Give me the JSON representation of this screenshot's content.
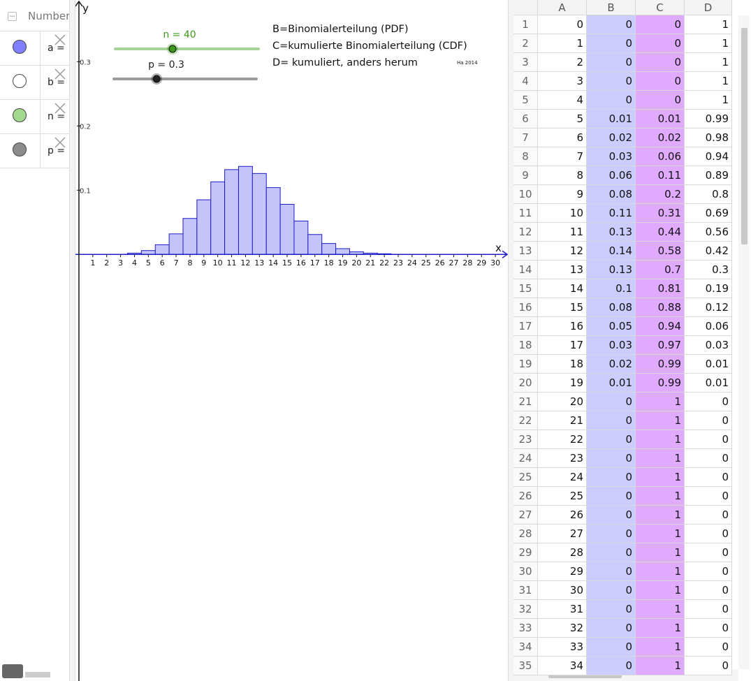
{
  "algebra": {
    "header": "Number",
    "items": [
      {
        "label": "a =",
        "color": "#8080ff"
      },
      {
        "label": "b =",
        "color": "#ffffff"
      },
      {
        "label": "n =",
        "color": "#a3d98f"
      },
      {
        "label": "p =",
        "color": "#8c8c8c"
      }
    ]
  },
  "chart_data": {
    "type": "bar",
    "x": [
      0,
      1,
      2,
      3,
      4,
      5,
      6,
      7,
      8,
      9,
      10,
      11,
      12,
      13,
      14,
      15,
      16,
      17,
      18,
      19,
      20,
      21,
      22,
      23
    ],
    "values": [
      0,
      0,
      0,
      0,
      0.002,
      0.006,
      0.015,
      0.032,
      0.056,
      0.085,
      0.113,
      0.132,
      0.137,
      0.126,
      0.104,
      0.078,
      0.052,
      0.031,
      0.017,
      0.009,
      0.004,
      0.002,
      0.001,
      0
    ],
    "color": "#c4c4fa",
    "edge_color": "#1c1cc8",
    "xlim": [
      -0.25,
      30.9
    ],
    "ylim": [
      -0.664,
      0.396
    ],
    "xticks": [
      1,
      2,
      3,
      4,
      5,
      6,
      7,
      8,
      9,
      10,
      11,
      12,
      13,
      14,
      15,
      16,
      17,
      18,
      19,
      20,
      21,
      22,
      23,
      24,
      25,
      26,
      27,
      28,
      29,
      30
    ],
    "yticks": [
      0.1,
      0.2,
      0.3
    ],
    "xlabel": "x",
    "ylabel": "y"
  },
  "sliders": [
    {
      "label": "n = 40",
      "value": 40,
      "min": 0,
      "max": 100,
      "color": "#3a9a1a"
    },
    {
      "label": "p = 0.3",
      "value": 0.3,
      "min": 0,
      "max": 1,
      "color": "#222222"
    }
  ],
  "notes": [
    "B=Binomialerteilung (PDF)",
    "C=kumulierte Binomialerteilung (CDF)",
    "D= kumuliert, anders herum"
  ],
  "credit": "Ha 2014",
  "spreadsheet": {
    "columns": [
      "A",
      "B",
      "C",
      "D"
    ],
    "rows": [
      {
        "header": 1,
        "cells": [
          0,
          0,
          0,
          1
        ]
      },
      {
        "header": 2,
        "cells": [
          1,
          0,
          0,
          1
        ]
      },
      {
        "header": 3,
        "cells": [
          2,
          0,
          0,
          1
        ]
      },
      {
        "header": 4,
        "cells": [
          3,
          0,
          0,
          1
        ]
      },
      {
        "header": 5,
        "cells": [
          4,
          0,
          0,
          1
        ]
      },
      {
        "header": 6,
        "cells": [
          5,
          0.01,
          0.01,
          0.99
        ]
      },
      {
        "header": 7,
        "cells": [
          6,
          0.02,
          0.02,
          0.98
        ]
      },
      {
        "header": 8,
        "cells": [
          7,
          0.03,
          0.06,
          0.94
        ]
      },
      {
        "header": 9,
        "cells": [
          8,
          0.06,
          0.11,
          0.89
        ]
      },
      {
        "header": 10,
        "cells": [
          9,
          0.08,
          0.2,
          0.8
        ]
      },
      {
        "header": 11,
        "cells": [
          10,
          0.11,
          0.31,
          0.69
        ]
      },
      {
        "header": 12,
        "cells": [
          11,
          0.13,
          0.44,
          0.56
        ]
      },
      {
        "header": 13,
        "cells": [
          12,
          0.14,
          0.58,
          0.42
        ]
      },
      {
        "header": 14,
        "cells": [
          13,
          0.13,
          0.7,
          0.3
        ]
      },
      {
        "header": 15,
        "cells": [
          14,
          0.1,
          0.81,
          0.19
        ]
      },
      {
        "header": 16,
        "cells": [
          15,
          0.08,
          0.88,
          0.12
        ]
      },
      {
        "header": 17,
        "cells": [
          16,
          0.05,
          0.94,
          0.06
        ]
      },
      {
        "header": 18,
        "cells": [
          17,
          0.03,
          0.97,
          0.03
        ]
      },
      {
        "header": 19,
        "cells": [
          18,
          0.02,
          0.99,
          0.01
        ]
      },
      {
        "header": 20,
        "cells": [
          19,
          0.01,
          0.99,
          0.01
        ]
      },
      {
        "header": 21,
        "cells": [
          20,
          0,
          1,
          0
        ]
      },
      {
        "header": 22,
        "cells": [
          21,
          0,
          1,
          0
        ]
      },
      {
        "header": 23,
        "cells": [
          22,
          0,
          1,
          0
        ]
      },
      {
        "header": 24,
        "cells": [
          23,
          0,
          1,
          0
        ]
      },
      {
        "header": 25,
        "cells": [
          24,
          0,
          1,
          0
        ]
      },
      {
        "header": 26,
        "cells": [
          25,
          0,
          1,
          0
        ]
      },
      {
        "header": 27,
        "cells": [
          26,
          0,
          1,
          0
        ]
      },
      {
        "header": 28,
        "cells": [
          27,
          0,
          1,
          0
        ]
      },
      {
        "header": 29,
        "cells": [
          28,
          0,
          1,
          0
        ]
      },
      {
        "header": 30,
        "cells": [
          29,
          0,
          1,
          0
        ]
      },
      {
        "header": 31,
        "cells": [
          30,
          0,
          1,
          0
        ]
      },
      {
        "header": 32,
        "cells": [
          31,
          0,
          1,
          0
        ]
      },
      {
        "header": 33,
        "cells": [
          32,
          0,
          1,
          0
        ]
      },
      {
        "header": 34,
        "cells": [
          33,
          0,
          1,
          0
        ]
      },
      {
        "header": 35,
        "cells": [
          34,
          0,
          1,
          0
        ]
      }
    ]
  }
}
